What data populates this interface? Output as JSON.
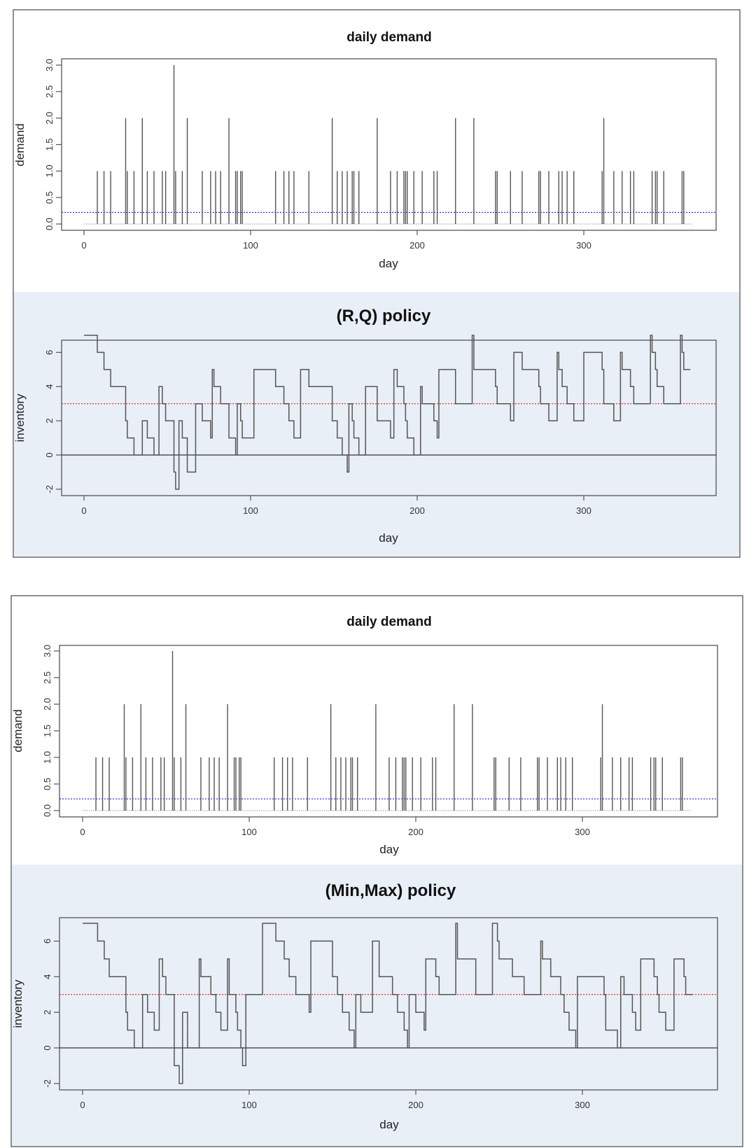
{
  "colors": {
    "panel_bg": "#e9eff7",
    "series": "#555555",
    "mean_line": "#0000ff",
    "reorder_line": "#ff0000",
    "zero_line": "#333333"
  },
  "chart_data": [
    {
      "type": "bar",
      "title": "daily demand",
      "xlabel": "day",
      "ylabel": "demand",
      "xticks": [
        0,
        100,
        200,
        300
      ],
      "yticks": [
        "0.0",
        "0.5",
        "1.0",
        "1.5",
        "2.0",
        "2.5",
        "3.0"
      ],
      "ylim": [
        0,
        3
      ],
      "xlim": [
        0,
        365
      ],
      "mean_line": 0.22,
      "x": [
        8,
        12,
        16,
        25,
        26,
        30,
        35,
        38,
        42,
        47,
        49,
        54,
        55,
        59,
        62,
        71,
        76,
        79,
        82,
        87,
        91,
        92,
        94,
        95,
        115,
        120,
        123,
        126,
        135,
        149,
        152,
        155,
        158,
        161,
        162,
        165,
        176,
        184,
        188,
        192,
        193,
        194,
        198,
        203,
        210,
        212,
        223,
        234,
        247,
        248,
        256,
        263,
        273,
        274,
        279,
        285,
        287,
        290,
        294,
        311,
        312,
        318,
        323,
        328,
        330,
        341,
        343,
        344,
        348,
        359,
        360
      ],
      "values": [
        1,
        1,
        1,
        2,
        1,
        1,
        2,
        1,
        1,
        1,
        1,
        3,
        1,
        1,
        2,
        1,
        1,
        1,
        1,
        2,
        1,
        1,
        1,
        1,
        1,
        1,
        1,
        1,
        1,
        2,
        1,
        1,
        1,
        1,
        1,
        1,
        2,
        1,
        1,
        1,
        1,
        1,
        1,
        1,
        1,
        1,
        2,
        2,
        1,
        1,
        1,
        1,
        1,
        1,
        1,
        1,
        1,
        1,
        1,
        1,
        2,
        1,
        1,
        1,
        1,
        1,
        1,
        1,
        1,
        1,
        1
      ]
    },
    {
      "type": "line",
      "step": true,
      "title": "(R,Q) policy",
      "xlabel": "day",
      "ylabel": "inventory",
      "xticks": [
        0,
        100,
        200,
        300
      ],
      "yticks": [
        "-2",
        "0",
        "2",
        "4",
        "6"
      ],
      "ylim": [
        -2,
        7
      ],
      "reorder_level": 3,
      "points": [
        [
          0,
          7
        ],
        [
          8,
          6
        ],
        [
          12,
          5
        ],
        [
          16,
          4
        ],
        [
          25,
          2
        ],
        [
          26,
          1
        ],
        [
          30,
          0
        ],
        [
          35,
          2
        ],
        [
          38,
          1
        ],
        [
          42,
          0
        ],
        [
          45,
          4
        ],
        [
          47,
          3
        ],
        [
          49,
          2
        ],
        [
          54,
          -1
        ],
        [
          55,
          -2
        ],
        [
          57,
          2
        ],
        [
          59,
          1
        ],
        [
          62,
          -1
        ],
        [
          67,
          3
        ],
        [
          71,
          2
        ],
        [
          76,
          1
        ],
        [
          77,
          5
        ],
        [
          78,
          4
        ],
        [
          82,
          3
        ],
        [
          87,
          1
        ],
        [
          91,
          0
        ],
        [
          92,
          3
        ],
        [
          94,
          2
        ],
        [
          95,
          1
        ],
        [
          102,
          5
        ],
        [
          115,
          4
        ],
        [
          120,
          3
        ],
        [
          123,
          2
        ],
        [
          126,
          1
        ],
        [
          130,
          5
        ],
        [
          135,
          4
        ],
        [
          149,
          2
        ],
        [
          152,
          1
        ],
        [
          155,
          0
        ],
        [
          158,
          -1
        ],
        [
          159,
          3
        ],
        [
          161,
          2
        ],
        [
          162,
          1
        ],
        [
          165,
          0
        ],
        [
          169,
          4
        ],
        [
          176,
          2
        ],
        [
          184,
          1
        ],
        [
          186,
          5
        ],
        [
          188,
          4
        ],
        [
          192,
          3
        ],
        [
          193,
          2
        ],
        [
          194,
          1
        ],
        [
          198,
          0
        ],
        [
          202,
          4
        ],
        [
          203,
          3
        ],
        [
          210,
          2
        ],
        [
          212,
          1
        ],
        [
          213,
          5
        ],
        [
          223,
          3
        ],
        [
          233,
          7
        ],
        [
          234,
          5
        ],
        [
          247,
          4
        ],
        [
          248,
          3
        ],
        [
          256,
          2
        ],
        [
          258,
          6
        ],
        [
          263,
          5
        ],
        [
          273,
          4
        ],
        [
          274,
          3
        ],
        [
          279,
          2
        ],
        [
          284,
          6
        ],
        [
          285,
          5
        ],
        [
          287,
          4
        ],
        [
          290,
          3
        ],
        [
          294,
          2
        ],
        [
          300,
          6
        ],
        [
          311,
          5
        ],
        [
          312,
          3
        ],
        [
          318,
          2
        ],
        [
          322,
          6
        ],
        [
          323,
          5
        ],
        [
          328,
          4
        ],
        [
          330,
          3
        ],
        [
          340,
          7
        ],
        [
          341,
          6
        ],
        [
          343,
          5
        ],
        [
          344,
          4
        ],
        [
          348,
          3
        ],
        [
          358,
          7
        ],
        [
          359,
          6
        ],
        [
          360,
          5
        ],
        [
          364,
          5
        ]
      ]
    },
    {
      "type": "bar",
      "title": "daily demand",
      "xlabel": "day",
      "ylabel": "demand",
      "xticks": [
        0,
        100,
        200,
        300
      ],
      "yticks": [
        "0.0",
        "0.5",
        "1.0",
        "1.5",
        "2.0",
        "2.5",
        "3.0"
      ],
      "ylim": [
        0,
        3
      ],
      "xlim": [
        0,
        365
      ],
      "mean_line": 0.22,
      "x": [
        8,
        12,
        16,
        25,
        26,
        30,
        35,
        38,
        42,
        47,
        49,
        54,
        55,
        59,
        62,
        71,
        76,
        79,
        82,
        87,
        91,
        92,
        94,
        95,
        115,
        120,
        123,
        126,
        135,
        149,
        152,
        155,
        158,
        161,
        162,
        165,
        176,
        184,
        188,
        192,
        193,
        194,
        198,
        203,
        210,
        212,
        223,
        234,
        247,
        248,
        256,
        263,
        273,
        274,
        279,
        285,
        287,
        290,
        294,
        311,
        312,
        318,
        323,
        328,
        330,
        341,
        343,
        344,
        348,
        359,
        360
      ],
      "values": [
        1,
        1,
        1,
        2,
        1,
        1,
        2,
        1,
        1,
        1,
        1,
        3,
        1,
        1,
        2,
        1,
        1,
        1,
        1,
        2,
        1,
        1,
        1,
        1,
        1,
        1,
        1,
        1,
        1,
        2,
        1,
        1,
        1,
        1,
        1,
        1,
        2,
        1,
        1,
        1,
        1,
        1,
        1,
        1,
        1,
        1,
        2,
        2,
        1,
        1,
        1,
        1,
        1,
        1,
        1,
        1,
        1,
        1,
        1,
        1,
        2,
        1,
        1,
        1,
        1,
        1,
        1,
        1,
        1,
        1,
        1
      ]
    },
    {
      "type": "line",
      "step": true,
      "title": "(Min,Max) policy",
      "xlabel": "day",
      "ylabel": "inventory",
      "xticks": [
        0,
        100,
        200,
        300
      ],
      "yticks": [
        "-2",
        "0",
        "2",
        "4",
        "6"
      ],
      "ylim": [
        -2,
        7
      ],
      "reorder_level": 3,
      "points": [
        [
          0,
          7
        ],
        [
          9,
          6
        ],
        [
          13,
          5
        ],
        [
          16,
          4
        ],
        [
          26,
          2
        ],
        [
          27,
          1
        ],
        [
          31,
          0
        ],
        [
          36,
          3
        ],
        [
          39,
          2
        ],
        [
          43,
          1
        ],
        [
          46,
          5
        ],
        [
          48,
          4
        ],
        [
          50,
          3
        ],
        [
          55,
          -1
        ],
        [
          58,
          -2
        ],
        [
          60,
          2
        ],
        [
          63,
          0
        ],
        [
          70,
          5
        ],
        [
          71,
          4
        ],
        [
          77,
          3
        ],
        [
          80,
          2
        ],
        [
          83,
          1
        ],
        [
          87,
          5
        ],
        [
          88,
          3
        ],
        [
          92,
          2
        ],
        [
          93,
          1
        ],
        [
          95,
          0
        ],
        [
          96,
          -1
        ],
        [
          98,
          3
        ],
        [
          108,
          7
        ],
        [
          116,
          6
        ],
        [
          121,
          5
        ],
        [
          124,
          4
        ],
        [
          128,
          3
        ],
        [
          136,
          2
        ],
        [
          137,
          6
        ],
        [
          150,
          4
        ],
        [
          153,
          3
        ],
        [
          156,
          2
        ],
        [
          160,
          1
        ],
        [
          163,
          0
        ],
        [
          164,
          3
        ],
        [
          167,
          2
        ],
        [
          174,
          6
        ],
        [
          178,
          4
        ],
        [
          186,
          3
        ],
        [
          189,
          2
        ],
        [
          193,
          1
        ],
        [
          195,
          0
        ],
        [
          196,
          3
        ],
        [
          200,
          2
        ],
        [
          205,
          1
        ],
        [
          206,
          5
        ],
        [
          212,
          4
        ],
        [
          214,
          3
        ],
        [
          224,
          7
        ],
        [
          225,
          5
        ],
        [
          236,
          3
        ],
        [
          246,
          7
        ],
        [
          249,
          6
        ],
        [
          250,
          5
        ],
        [
          258,
          4
        ],
        [
          265,
          3
        ],
        [
          275,
          6
        ],
        [
          276,
          5
        ],
        [
          281,
          4
        ],
        [
          287,
          3
        ],
        [
          289,
          2
        ],
        [
          292,
          1
        ],
        [
          296,
          0
        ],
        [
          297,
          4
        ],
        [
          313,
          3
        ],
        [
          314,
          1
        ],
        [
          321,
          0
        ],
        [
          323,
          4
        ],
        [
          325,
          3
        ],
        [
          330,
          2
        ],
        [
          332,
          1
        ],
        [
          335,
          5
        ],
        [
          343,
          4
        ],
        [
          345,
          3
        ],
        [
          346,
          2
        ],
        [
          350,
          1
        ],
        [
          355,
          5
        ],
        [
          361,
          4
        ],
        [
          362,
          3
        ],
        [
          366,
          3
        ]
      ]
    }
  ]
}
